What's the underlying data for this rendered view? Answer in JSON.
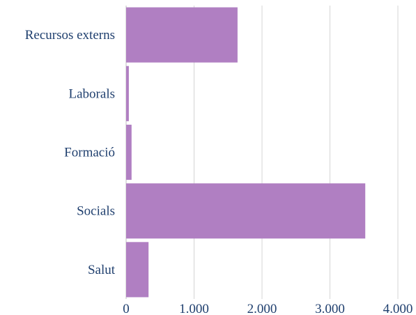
{
  "chart_data": {
    "type": "bar",
    "orientation": "horizontal",
    "categories": [
      "Recursos externs",
      "Laborals",
      "Formació",
      "Socials",
      "Salut"
    ],
    "values": [
      1640,
      40,
      80,
      3520,
      330
    ],
    "xlim": [
      0,
      4000
    ],
    "x_ticks": [
      0,
      1000,
      2000,
      3000,
      4000
    ],
    "x_tick_labels": [
      "0",
      "1.000",
      "2.000",
      "3.000",
      "4.000"
    ],
    "grid": true,
    "legend": "none",
    "bar_color": "#b07fc2",
    "text_color": "#1f3f6e",
    "title": "",
    "xlabel": "",
    "ylabel": ""
  }
}
